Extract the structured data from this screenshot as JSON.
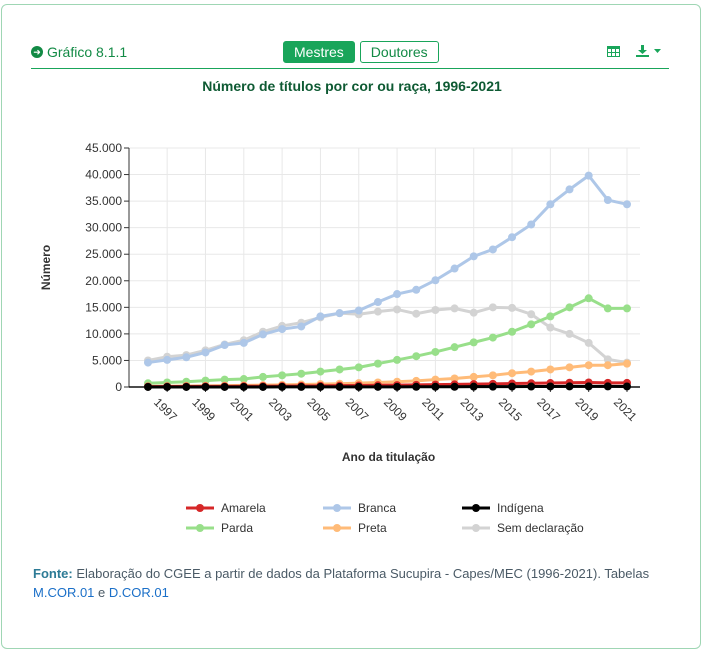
{
  "header": {
    "figure_label": "Gráfico 8.1.1",
    "tabs": [
      {
        "label": "Mestres",
        "active": true
      },
      {
        "label": "Doutores",
        "active": false
      }
    ],
    "icons": [
      "arrow-circle-right-icon",
      "table-icon",
      "download-icon",
      "caret-down-icon"
    ],
    "accent_color": "#19a55a"
  },
  "chart_data": {
    "type": "line",
    "title": "Número de títulos por cor ou raça, 1996-2021",
    "xlabel": "Ano da titulação",
    "ylabel": "Número",
    "x": [
      1996,
      1997,
      1998,
      1999,
      2000,
      2001,
      2002,
      2003,
      2004,
      2005,
      2006,
      2007,
      2008,
      2009,
      2010,
      2011,
      2012,
      2013,
      2014,
      2015,
      2016,
      2017,
      2018,
      2019,
      2020,
      2021
    ],
    "x_tick_labels": [
      "1997",
      "1999",
      "2001",
      "2003",
      "2005",
      "2007",
      "2009",
      "2011",
      "2013",
      "2015",
      "2017",
      "2019",
      "2021"
    ],
    "ylim": [
      0,
      45000
    ],
    "y_tick_labels": [
      "0",
      "5.000",
      "10.000",
      "15.000",
      "20.000",
      "25.000",
      "30.000",
      "35.000",
      "40.000",
      "45.000"
    ],
    "grid": true,
    "legend_position": "bottom",
    "series": [
      {
        "name": "Amarela",
        "color": "#d62728",
        "values": [
          80,
          90,
          100,
          110,
          120,
          130,
          150,
          170,
          190,
          220,
          250,
          280,
          320,
          360,
          400,
          450,
          500,
          550,
          600,
          650,
          700,
          750,
          800,
          850,
          780,
          770
        ]
      },
      {
        "name": "Branca",
        "color": "#aec7e8",
        "values": [
          4600,
          5100,
          5600,
          6500,
          7900,
          8300,
          9900,
          10900,
          11400,
          13300,
          13900,
          14400,
          16000,
          17500,
          18300,
          20100,
          22300,
          24600,
          25900,
          28200,
          30600,
          34400,
          37200,
          39800,
          35200,
          34400
        ]
      },
      {
        "name": "Indígena",
        "color": "#000000",
        "values": [
          5,
          5,
          5,
          5,
          10,
          10,
          10,
          15,
          15,
          20,
          20,
          25,
          30,
          35,
          40,
          45,
          50,
          60,
          70,
          80,
          90,
          100,
          110,
          120,
          110,
          100
        ]
      },
      {
        "name": "Parda",
        "color": "#98df8a",
        "values": [
          700,
          850,
          1000,
          1200,
          1400,
          1500,
          1900,
          2200,
          2500,
          2900,
          3300,
          3700,
          4400,
          5100,
          5800,
          6600,
          7500,
          8400,
          9300,
          10400,
          11800,
          13300,
          15000,
          16700,
          14800,
          14800
        ]
      },
      {
        "name": "Preta",
        "color": "#ffbb78",
        "values": [
          120,
          150,
          180,
          220,
          260,
          300,
          350,
          400,
          460,
          540,
          620,
          720,
          850,
          1000,
          1150,
          1400,
          1600,
          1900,
          2200,
          2600,
          2900,
          3300,
          3700,
          4100,
          4100,
          4400
        ]
      },
      {
        "name": "Sem declaração",
        "color": "#d3d3d3",
        "values": [
          5000,
          5700,
          6000,
          6900,
          8000,
          8800,
          10400,
          11500,
          12100,
          13100,
          13900,
          13700,
          14200,
          14600,
          13800,
          14500,
          14800,
          14000,
          15000,
          14900,
          13700,
          11200,
          10000,
          8300,
          5200,
          4600
        ]
      }
    ]
  },
  "footer": {
    "source_label": "Fonte:",
    "source_text": " Elaboração do CGEE a partir de dados da Plataforma Sucupira - Capes/MEC (1996-2021). Tabelas ",
    "link1": "M.COR.01",
    "conjunction": " e ",
    "link2": "D.COR.01"
  }
}
